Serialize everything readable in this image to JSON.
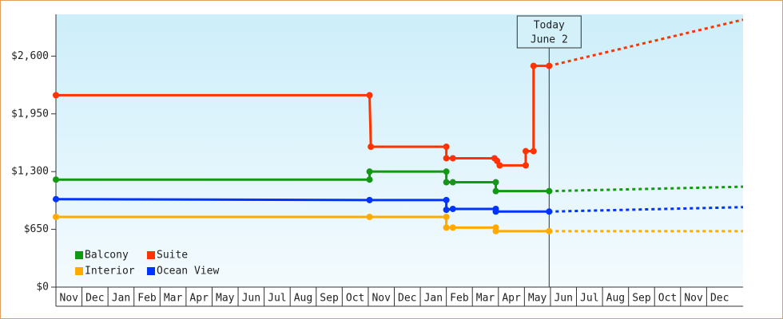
{
  "chart_data": {
    "type": "step-line",
    "categories": [
      "Nov",
      "Dec",
      "Jan",
      "Feb",
      "Mar",
      "Apr",
      "May",
      "Jun",
      "Jul",
      "Aug",
      "Sep",
      "Oct",
      "Nov",
      "Dec",
      "Jan",
      "Feb",
      "Mar",
      "Apr",
      "May",
      "Jun",
      "Jul",
      "Aug",
      "Sep",
      "Oct",
      "Nov",
      "Dec"
    ],
    "xlim": [
      0,
      26.4
    ],
    "ylim": [
      0,
      3070
    ],
    "yticks": [
      {
        "value": 0,
        "label": "$0"
      },
      {
        "value": 650,
        "label": "$650"
      },
      {
        "value": 1300,
        "label": "$1,300"
      },
      {
        "value": 1950,
        "label": "$1,950"
      },
      {
        "value": 2600,
        "label": "$2,600"
      }
    ],
    "legend": "lower left",
    "today": {
      "title": "Today",
      "label": "June 2",
      "x": 18.95
    },
    "series": [
      {
        "name": "Balcony",
        "color": "#119911",
        "x": [
          0,
          12.05,
          12.05,
          15.0,
          15.0,
          15.25,
          16.9,
          16.9,
          18.95
        ],
        "values": [
          1210,
          1210,
          1300,
          1300,
          1180,
          1180,
          1180,
          1080,
          1080
        ],
        "forecast_x": [
          18.95,
          26.4
        ],
        "forecast_values": [
          1080,
          1130
        ]
      },
      {
        "name": "Suite",
        "color": "#ff3300",
        "x": [
          0,
          12.05,
          12.1,
          15.0,
          15.0,
          15.25,
          16.85,
          16.95,
          17.05,
          18.05,
          18.05,
          18.35,
          18.35,
          18.95
        ],
        "values": [
          2160,
          2160,
          1580,
          1580,
          1450,
          1450,
          1450,
          1420,
          1370,
          1370,
          1530,
          1530,
          2490,
          2490
        ],
        "forecast_x": [
          18.95,
          26.4
        ],
        "forecast_values": [
          2490,
          3010
        ]
      },
      {
        "name": "Interior",
        "color": "#ffaa00",
        "x": [
          0,
          12.05,
          15.0,
          15.0,
          15.25,
          16.9,
          16.9,
          18.95
        ],
        "values": [
          790,
          790,
          790,
          670,
          670,
          670,
          630,
          630
        ],
        "forecast_x": [
          18.95,
          26.4
        ],
        "forecast_values": [
          630,
          630
        ]
      },
      {
        "name": "Ocean View",
        "color": "#0033ff",
        "x": [
          0,
          12.05,
          15.0,
          15.0,
          15.25,
          16.9,
          16.9,
          18.95
        ],
        "values": [
          990,
          980,
          980,
          870,
          880,
          880,
          850,
          850
        ],
        "forecast_x": [
          18.95,
          26.4
        ],
        "forecast_values": [
          850,
          900
        ]
      }
    ]
  }
}
